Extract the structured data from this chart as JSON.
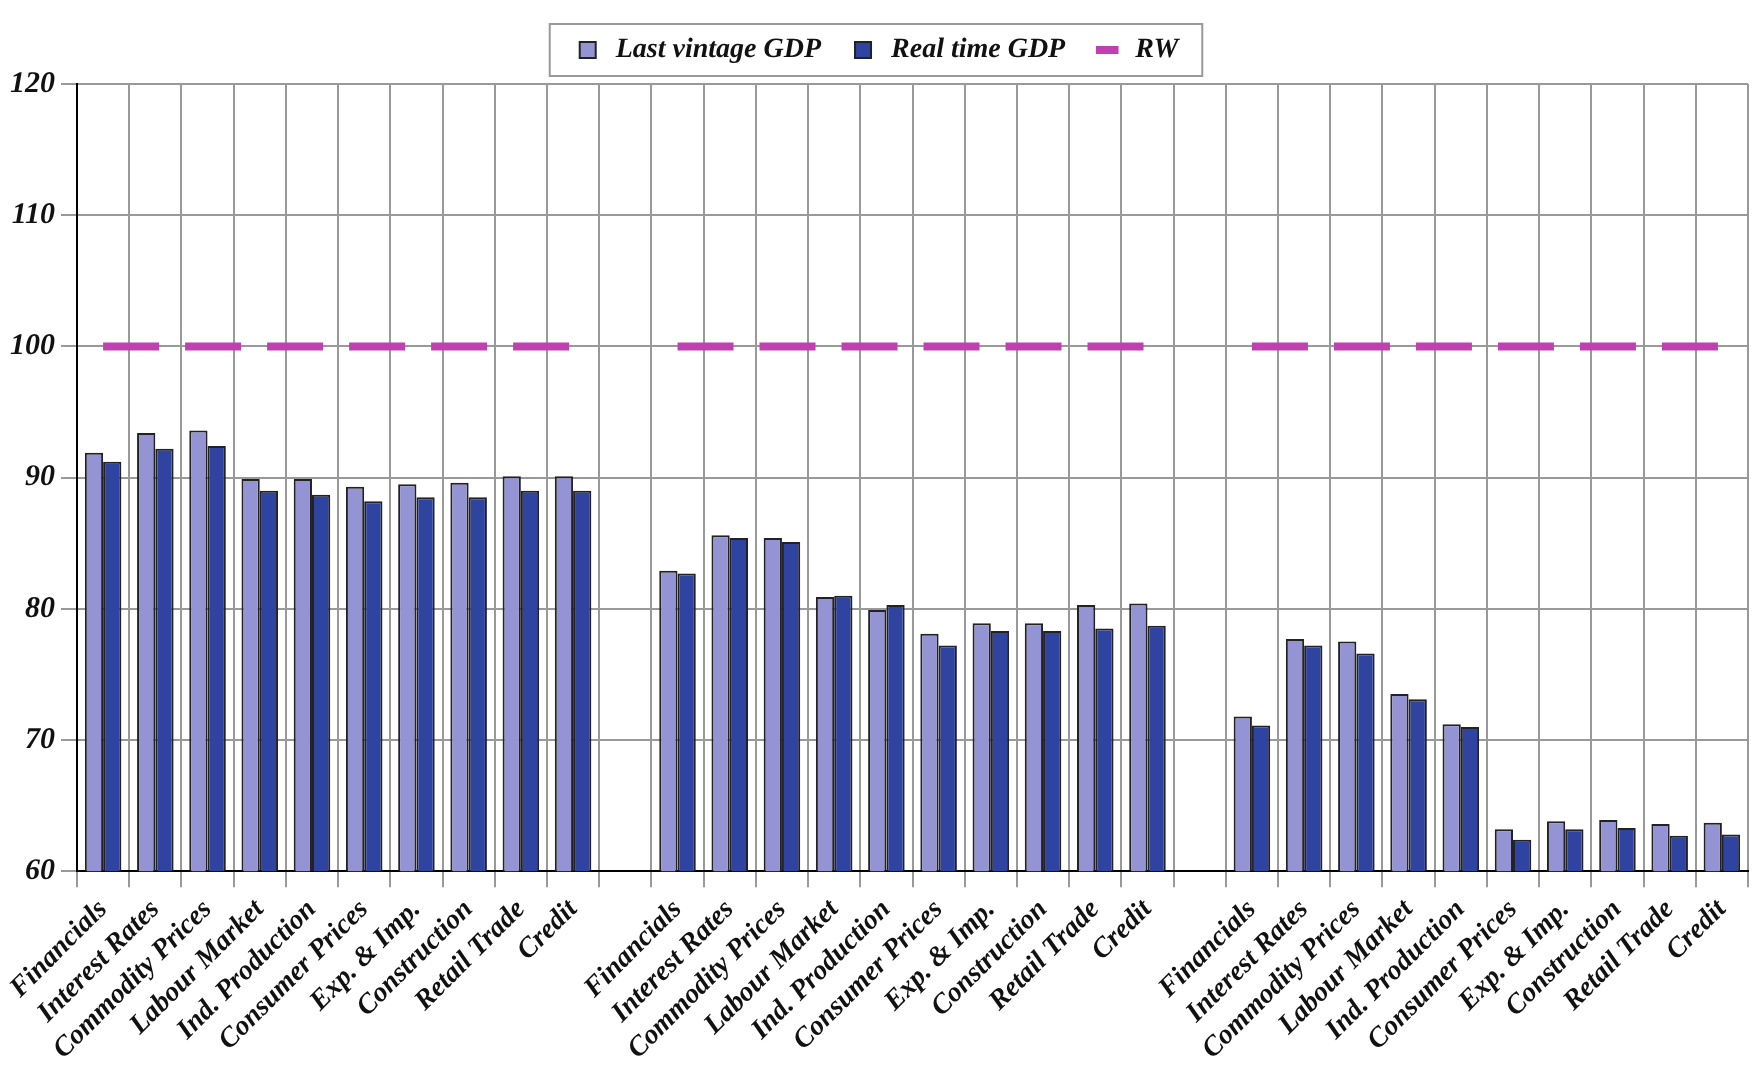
{
  "chart_data": {
    "type": "bar",
    "categories": [
      "Financials",
      "Interest Rates",
      "Commodity Prices",
      "Labour Market",
      "Ind. Production",
      "Consumer Prices",
      "Exp. & Imp.",
      "Construction",
      "Retail Trade",
      "Credit",
      null,
      "Financials",
      "Interest Rates",
      "Commodity Prices",
      "Labour Market",
      "Ind. Production",
      "Consumer Prices",
      "Exp. & Imp.",
      "Construction",
      "Retail Trade",
      "Credit",
      null,
      "Financials",
      "Interest Rates",
      "Commodity Prices",
      "Labour Market",
      "Ind. Production",
      "Consumer Prices",
      "Exp. & Imp.",
      "Construction",
      "Retail Trade",
      "Credit"
    ],
    "series": [
      {
        "name": "Last vintage GDP",
        "color": "#9494d4",
        "values": [
          91.9,
          93.4,
          93.6,
          89.9,
          89.9,
          89.3,
          89.5,
          89.6,
          90.1,
          90.1,
          null,
          82.9,
          85.6,
          85.4,
          80.9,
          79.9,
          78.1,
          78.9,
          78.9,
          80.3,
          80.4,
          null,
          71.8,
          77.7,
          77.5,
          73.5,
          71.2,
          63.2,
          63.8,
          63.9,
          63.6,
          63.7
        ]
      },
      {
        "name": "Real time GDP",
        "color": "#2e44a0",
        "values": [
          91.2,
          92.2,
          92.4,
          89.0,
          88.7,
          88.2,
          88.5,
          88.5,
          89.0,
          89.0,
          null,
          82.7,
          85.4,
          85.1,
          81.0,
          80.3,
          77.2,
          78.3,
          78.3,
          78.5,
          78.7,
          null,
          71.1,
          77.2,
          76.6,
          73.1,
          71.0,
          62.4,
          63.2,
          63.3,
          62.7,
          62.8
        ]
      },
      {
        "name": "RW",
        "type": "line",
        "color": "#c040b0",
        "line_style": "dashed",
        "marker": "none",
        "values": [
          100,
          100,
          100,
          100,
          100,
          100,
          100,
          100,
          100,
          100,
          null,
          100,
          100,
          100,
          100,
          100,
          100,
          100,
          100,
          100,
          100,
          null,
          100,
          100,
          100,
          100,
          100,
          100,
          100,
          100,
          100,
          100
        ]
      }
    ],
    "ylim": [
      60,
      120
    ],
    "yticks": [
      60,
      70,
      80,
      90,
      100,
      110,
      120
    ],
    "grid": true,
    "legend": "top"
  }
}
